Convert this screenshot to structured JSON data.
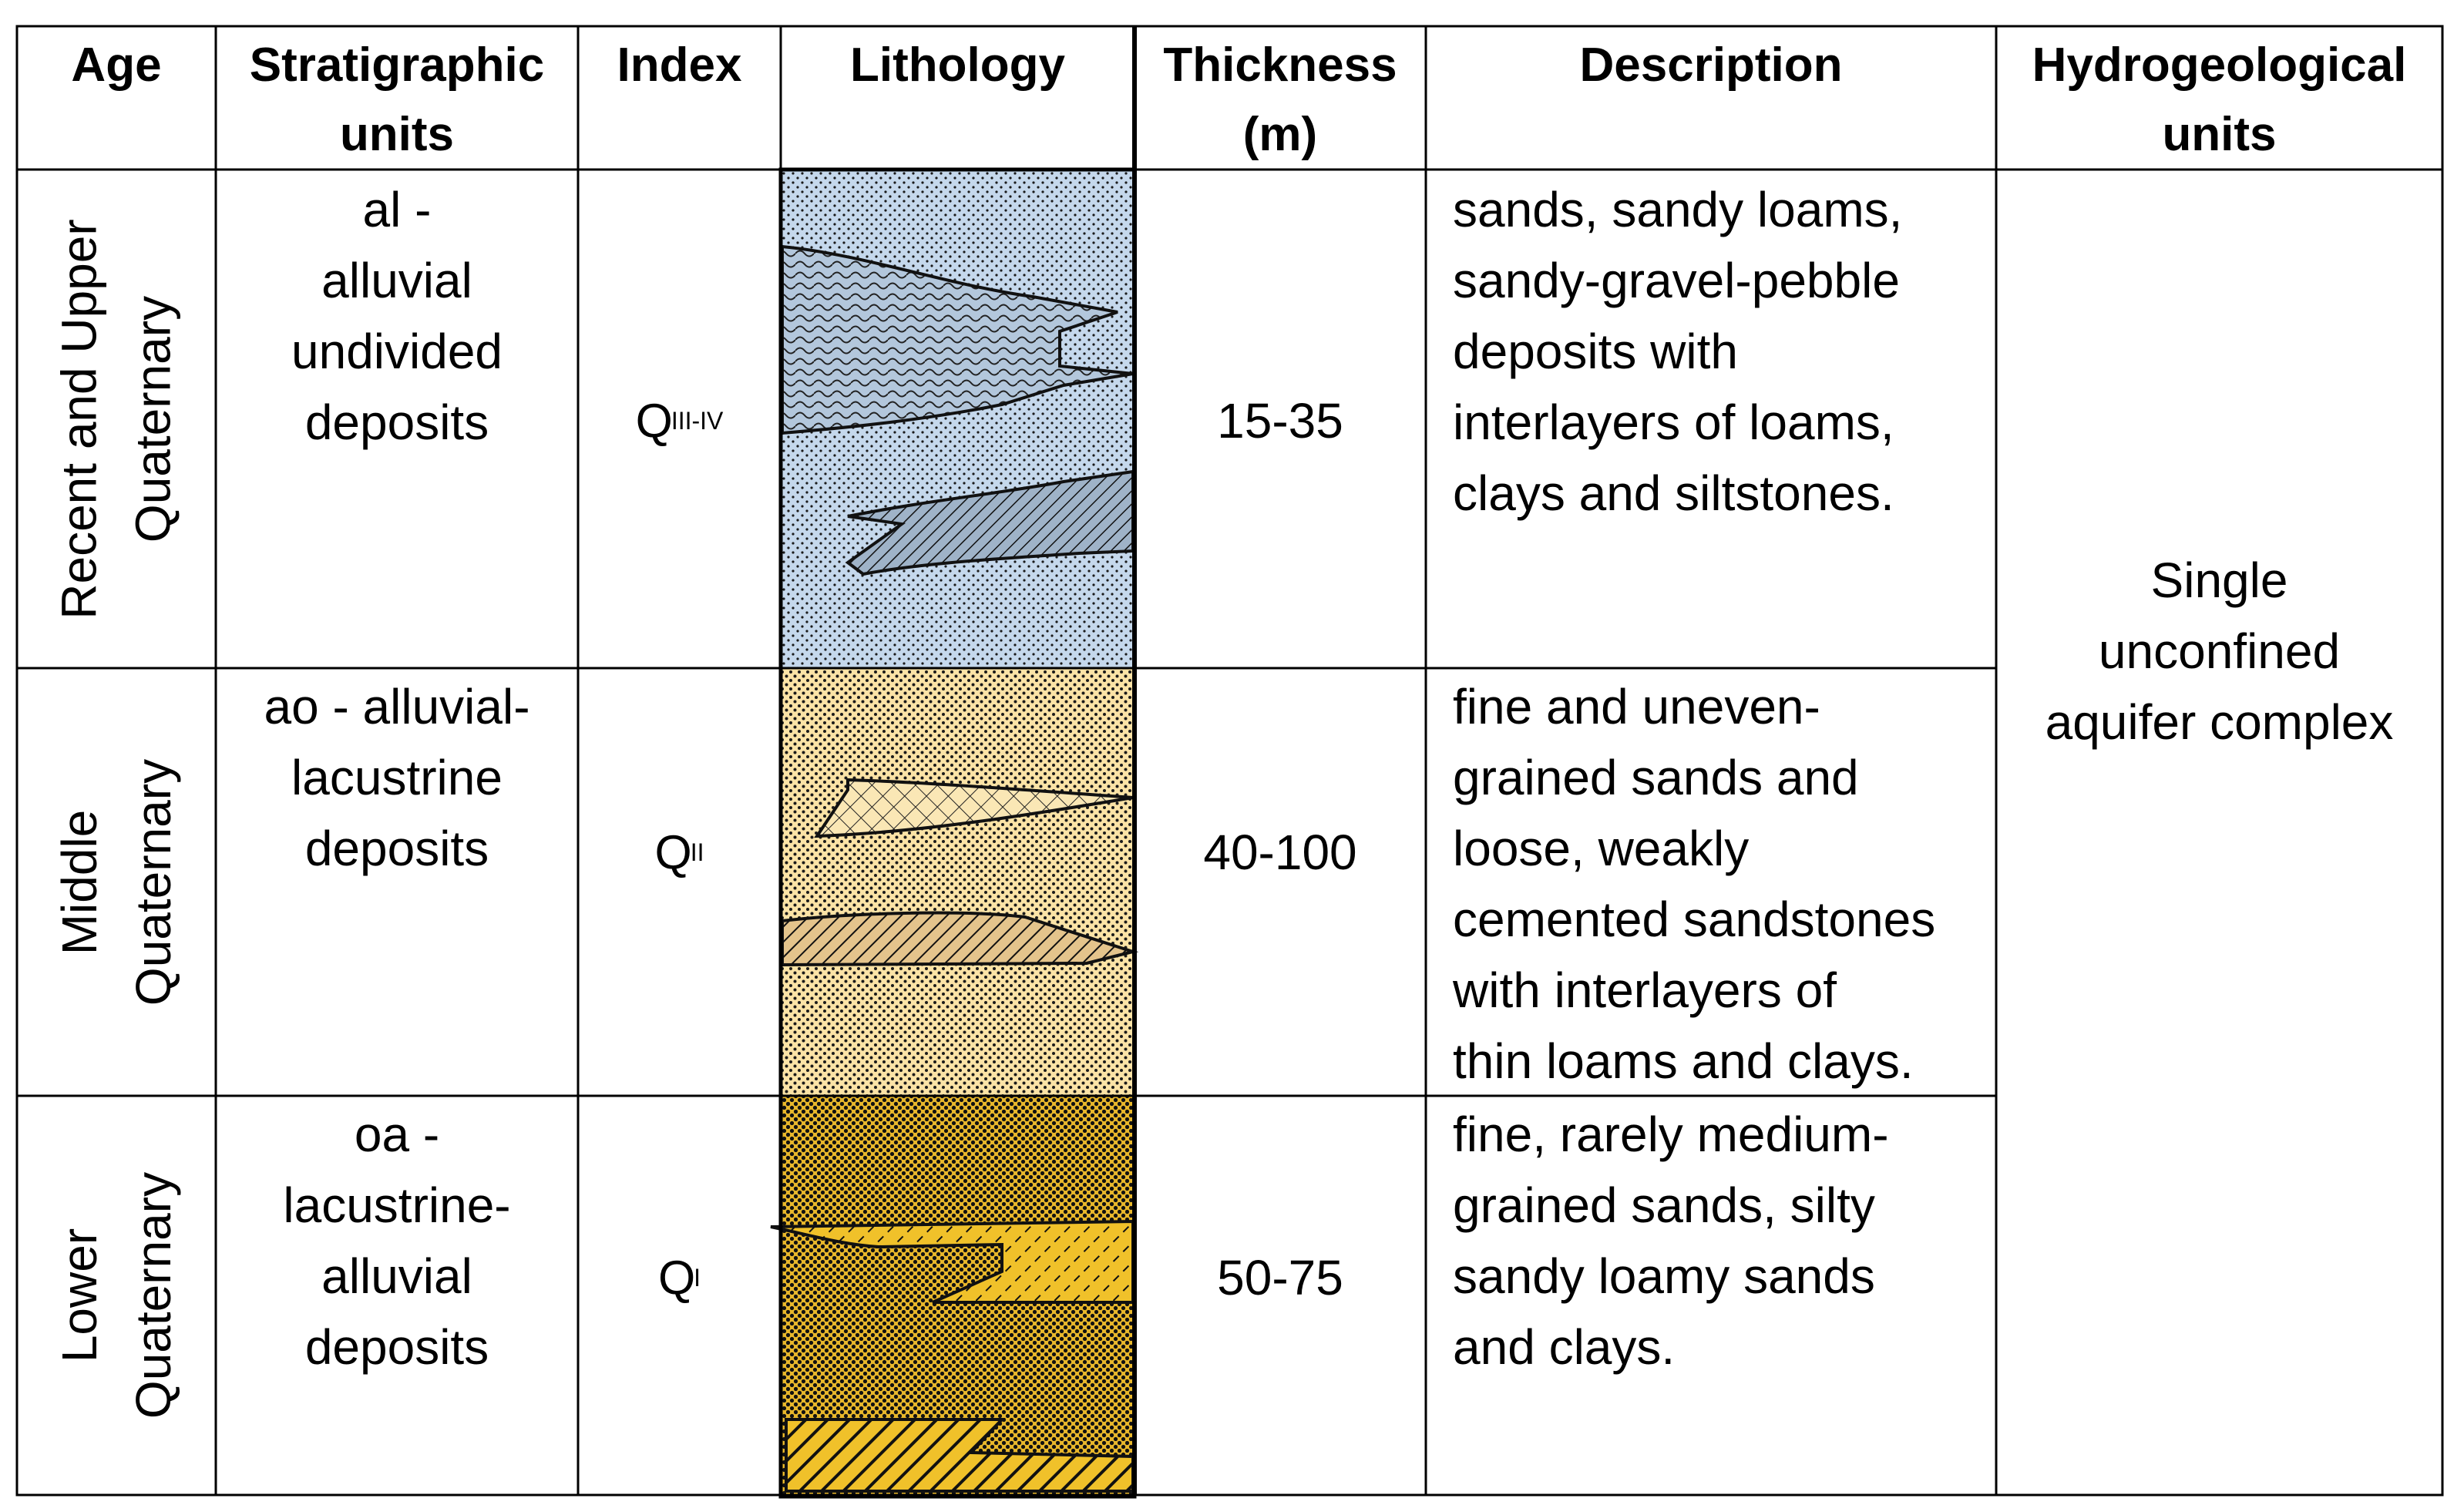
{
  "headers": {
    "age": [
      "Age"
    ],
    "strat": [
      "Stratigraphic",
      "units"
    ],
    "index": [
      "Index"
    ],
    "lithology": [
      "Lithology"
    ],
    "thickness": [
      "Thickness",
      "(m)"
    ],
    "description": [
      "Description"
    ],
    "hydro": [
      "Hydrogeological",
      "units"
    ]
  },
  "rows": [
    {
      "age": [
        "Recent and Upper",
        "Quaternary"
      ],
      "strat": [
        "al -",
        "alluvial",
        "undivided",
        "deposits"
      ],
      "index_base": "Q",
      "index_sub": "III-IV",
      "thickness": "15-35",
      "description": [
        "sands, sandy loams,",
        "sandy-gravel-pebble",
        "deposits with",
        "interlayers of loams,",
        "clays and siltstones."
      ]
    },
    {
      "age": [
        "Middle",
        "Quaternary"
      ],
      "strat": [
        "ao - alluvial-",
        "lacustrine",
        "deposits"
      ],
      "index_base": "Q",
      "index_sub": "II",
      "thickness": "40-100",
      "description": [
        "fine and uneven-",
        "grained sands and",
        "loose, weakly",
        "cemented sandstones",
        "with interlayers of",
        "thin loams and clays."
      ]
    },
    {
      "age": [
        "Lower",
        "Quaternary"
      ],
      "strat": [
        "oa -",
        "lacustrine-",
        "alluvial",
        "deposits"
      ],
      "index_base": "Q",
      "index_sub": "I",
      "thickness": "50-75",
      "description": [
        "fine, rarely medium-",
        "grained sands, silty",
        "sandy loamy sands",
        "and clays."
      ]
    }
  ],
  "hydro_unit": [
    "Single",
    "unconfined",
    "aquifer complex"
  ],
  "colors": {
    "layer_upper": "#c5d8ec",
    "layer_middle": "#fbe3a6",
    "layer_lower": "#e8b72b",
    "lens_upper_1": "#b3c7dc",
    "lens_upper_2": "#9fb3c8",
    "lens_middle_1": "#fae7b5",
    "lens_middle_2": "#e4c48c",
    "lens_lower": "#f0c12a",
    "grid_line": "#000000"
  }
}
